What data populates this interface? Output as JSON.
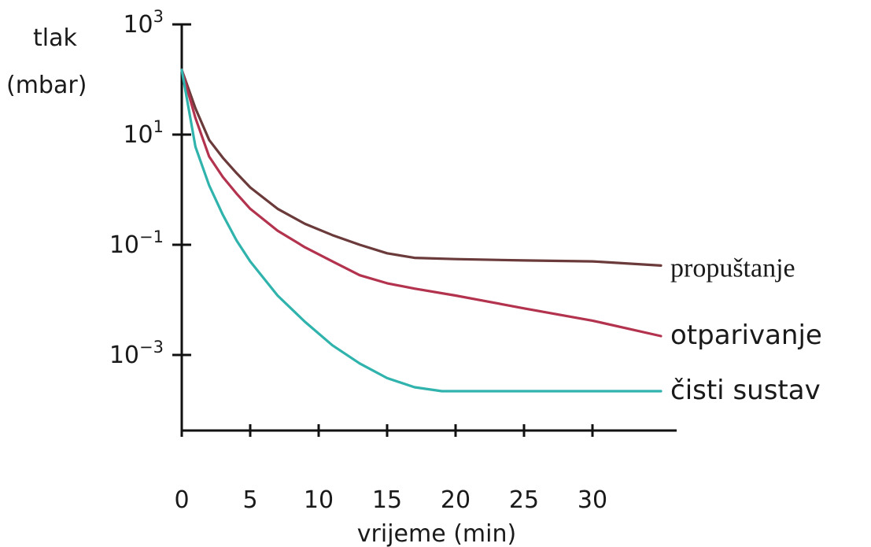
{
  "chart_data": {
    "type": "line",
    "ylabel_line1": "tlak",
    "ylabel_line2": "(mbar)",
    "xlabel": "vrijeme (min)",
    "y_scale": "log",
    "ylim": [
      2e-05,
      1000
    ],
    "xlim": [
      0,
      36
    ],
    "x_ticks": [
      0,
      5,
      10,
      15,
      20,
      25,
      30
    ],
    "x_tick_labels": [
      "0",
      "5",
      "10",
      "15",
      "20",
      "25",
      "30"
    ],
    "y_ticks": [
      {
        "value": 1000,
        "base": "10",
        "exp": "3"
      },
      {
        "value": 10,
        "base": "10",
        "exp": "1"
      },
      {
        "value": 0.1,
        "base": "10",
        "exp": "−1"
      },
      {
        "value": 0.001,
        "base": "10",
        "exp": "−3"
      }
    ],
    "grid": false,
    "legend": "labels at line ends (right)",
    "series": [
      {
        "name": "propuštanje",
        "color": "#6b3a3a",
        "x": [
          0,
          1,
          2,
          3,
          4,
          5,
          7,
          9,
          11,
          13,
          15,
          17,
          20,
          25,
          30,
          35
        ],
        "y": [
          150,
          30,
          8,
          3.8,
          2.0,
          1.1,
          0.45,
          0.24,
          0.15,
          0.1,
          0.07,
          0.058,
          0.055,
          0.052,
          0.05,
          0.042
        ]
      },
      {
        "name": "otparivanje",
        "color": "#b3334e",
        "x": [
          0,
          1,
          2,
          3,
          4,
          5,
          7,
          9,
          11,
          13,
          15,
          17,
          20,
          25,
          30,
          35
        ],
        "y": [
          150,
          20,
          4,
          1.7,
          0.85,
          0.45,
          0.18,
          0.09,
          0.05,
          0.028,
          0.02,
          0.016,
          0.012,
          0.007,
          0.0042,
          0.0022
        ]
      },
      {
        "name": "čisti sustav",
        "color": "#2fb3ac",
        "x": [
          0,
          1,
          2,
          3,
          4,
          5,
          7,
          9,
          11,
          13,
          15,
          17,
          19,
          20,
          25,
          30,
          35
        ],
        "y": [
          150,
          6,
          1.2,
          0.35,
          0.12,
          0.05,
          0.012,
          0.004,
          0.0015,
          0.0007,
          0.00038,
          0.00026,
          0.00022,
          0.00022,
          0.00022,
          0.00022,
          0.00022
        ]
      }
    ]
  }
}
